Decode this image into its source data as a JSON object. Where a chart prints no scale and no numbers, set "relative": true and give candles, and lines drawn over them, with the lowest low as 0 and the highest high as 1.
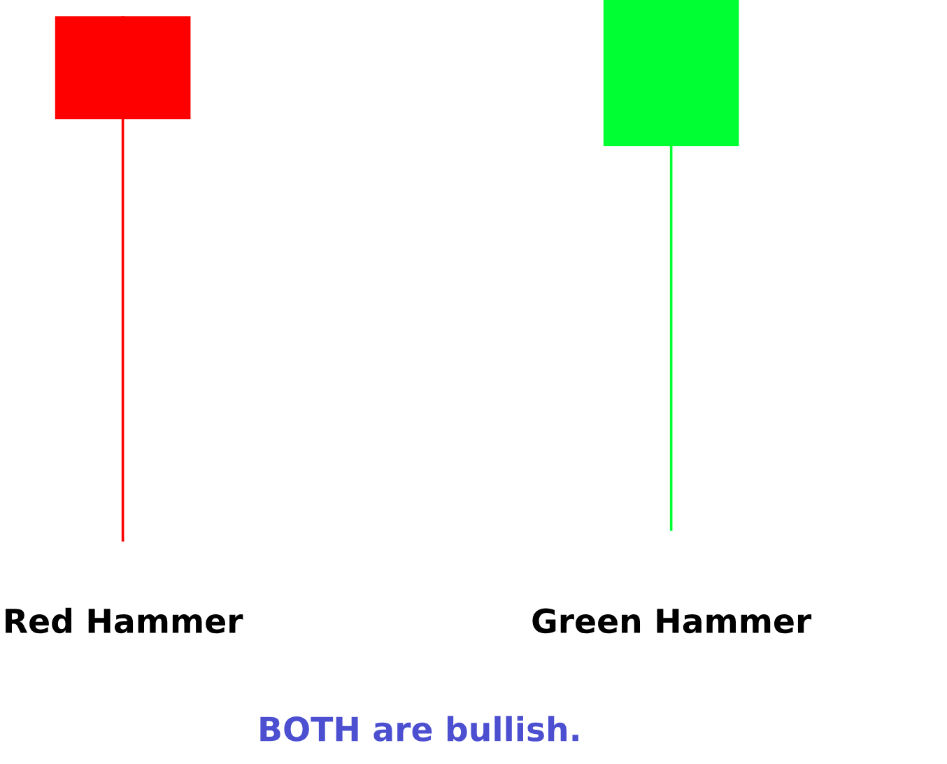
{
  "chart_data": {
    "type": "candlestick",
    "relative": true,
    "categories": [
      "Red Hammer",
      "Green Hammer"
    ],
    "ohlc": [
      [
        0.97,
        0.97,
        0,
        0.78
      ],
      [
        0.73,
        1,
        0.02,
        1
      ]
    ],
    "colors": [
      "#ff0000",
      "#00ff33"
    ],
    "annotations": [
      "BOTH are bullish."
    ]
  }
}
